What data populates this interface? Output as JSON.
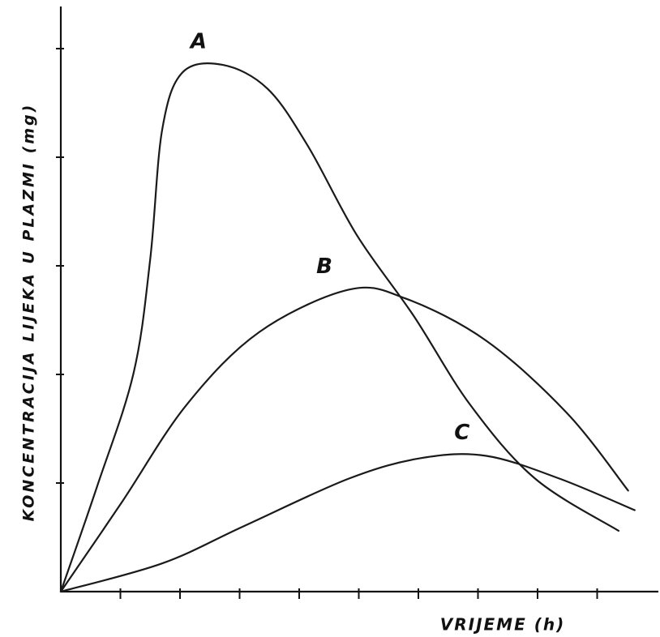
{
  "chart_data": {
    "type": "line",
    "x_label": "VRIJEME (h)",
    "y_label": "KONCENTRACIJA LIJEKA U PLAZMI (mg)",
    "xlim": [
      0,
      10
    ],
    "ylim": [
      0,
      5.4
    ],
    "xticks": [
      1,
      2,
      3,
      4,
      5,
      6,
      7,
      8,
      9
    ],
    "yticks": [
      1,
      2,
      3,
      4,
      5
    ],
    "series": [
      {
        "name": "A",
        "color": "#1a1a1a",
        "x": [
          0,
          0.61,
          1.22,
          1.5,
          1.7,
          2.04,
          2.72,
          3.47,
          4.15,
          4.97,
          5.92,
          6.87,
          7.96,
          9.36
        ],
        "values": [
          0,
          0.97,
          2.01,
          3.06,
          4.25,
          4.78,
          4.85,
          4.63,
          4.1,
          3.28,
          2.54,
          1.72,
          1.04,
          0.56
        ]
      },
      {
        "name": "B",
        "color": "#1a1a1a",
        "x": [
          0,
          1.02,
          2.11,
          3.33,
          4.83,
          5.78,
          7.14,
          8.5,
          9.52
        ],
        "values": [
          0,
          0.82,
          1.72,
          2.39,
          2.78,
          2.7,
          2.31,
          1.64,
          0.93
        ]
      },
      {
        "name": "C",
        "color": "#1a1a1a",
        "x": [
          0,
          1.7,
          3.06,
          4.83,
          6.05,
          7.14,
          8.37,
          9.63
        ],
        "values": [
          0,
          0.26,
          0.6,
          1.04,
          1.23,
          1.25,
          1.04,
          0.75
        ]
      }
    ]
  }
}
